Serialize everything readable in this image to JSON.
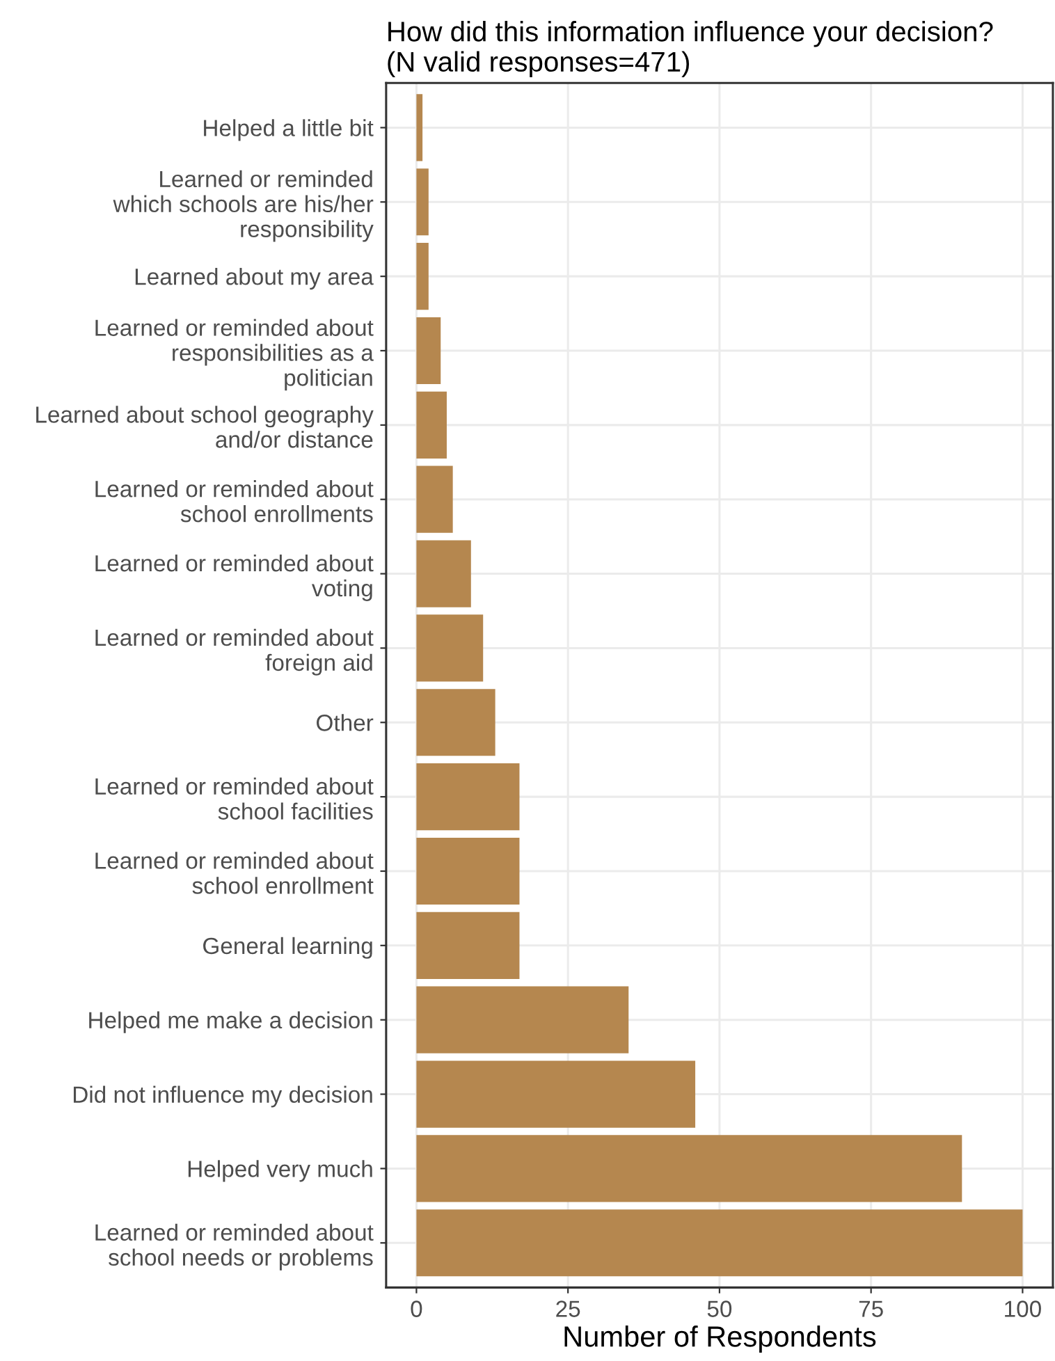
{
  "chart_data": {
    "type": "bar",
    "orientation": "horizontal",
    "title": "How did this information influence your decision?\n(N valid responses=471)",
    "xlabel": "Number of Respondents",
    "categories": [
      "Helped a little bit",
      "Learned or reminded\nwhich schools are his/her\nresponsibility",
      "Learned about my area",
      "Learned or reminded about\nresponsibilities as a\npolitician",
      "Learned about school geography\nand/or distance",
      "Learned or reminded about\nschool enrollments",
      "Learned or reminded about\nvoting",
      "Learned or reminded about\nforeign aid",
      "Other",
      "Learned or reminded about\nschool facilities",
      "Learned or reminded about\nschool enrollment",
      "General learning",
      "Helped me make a decision",
      "Did not influence my decision",
      "Helped very much",
      "Learned or reminded about\nschool needs or problems"
    ],
    "values": [
      1,
      2,
      2,
      4,
      5,
      6,
      9,
      11,
      13,
      17,
      17,
      17,
      35,
      46,
      90,
      100
    ],
    "color": "#b5874f",
    "xlim": [
      -5,
      105
    ],
    "xticks": [
      0,
      25,
      50,
      75,
      100
    ],
    "grid": true
  }
}
